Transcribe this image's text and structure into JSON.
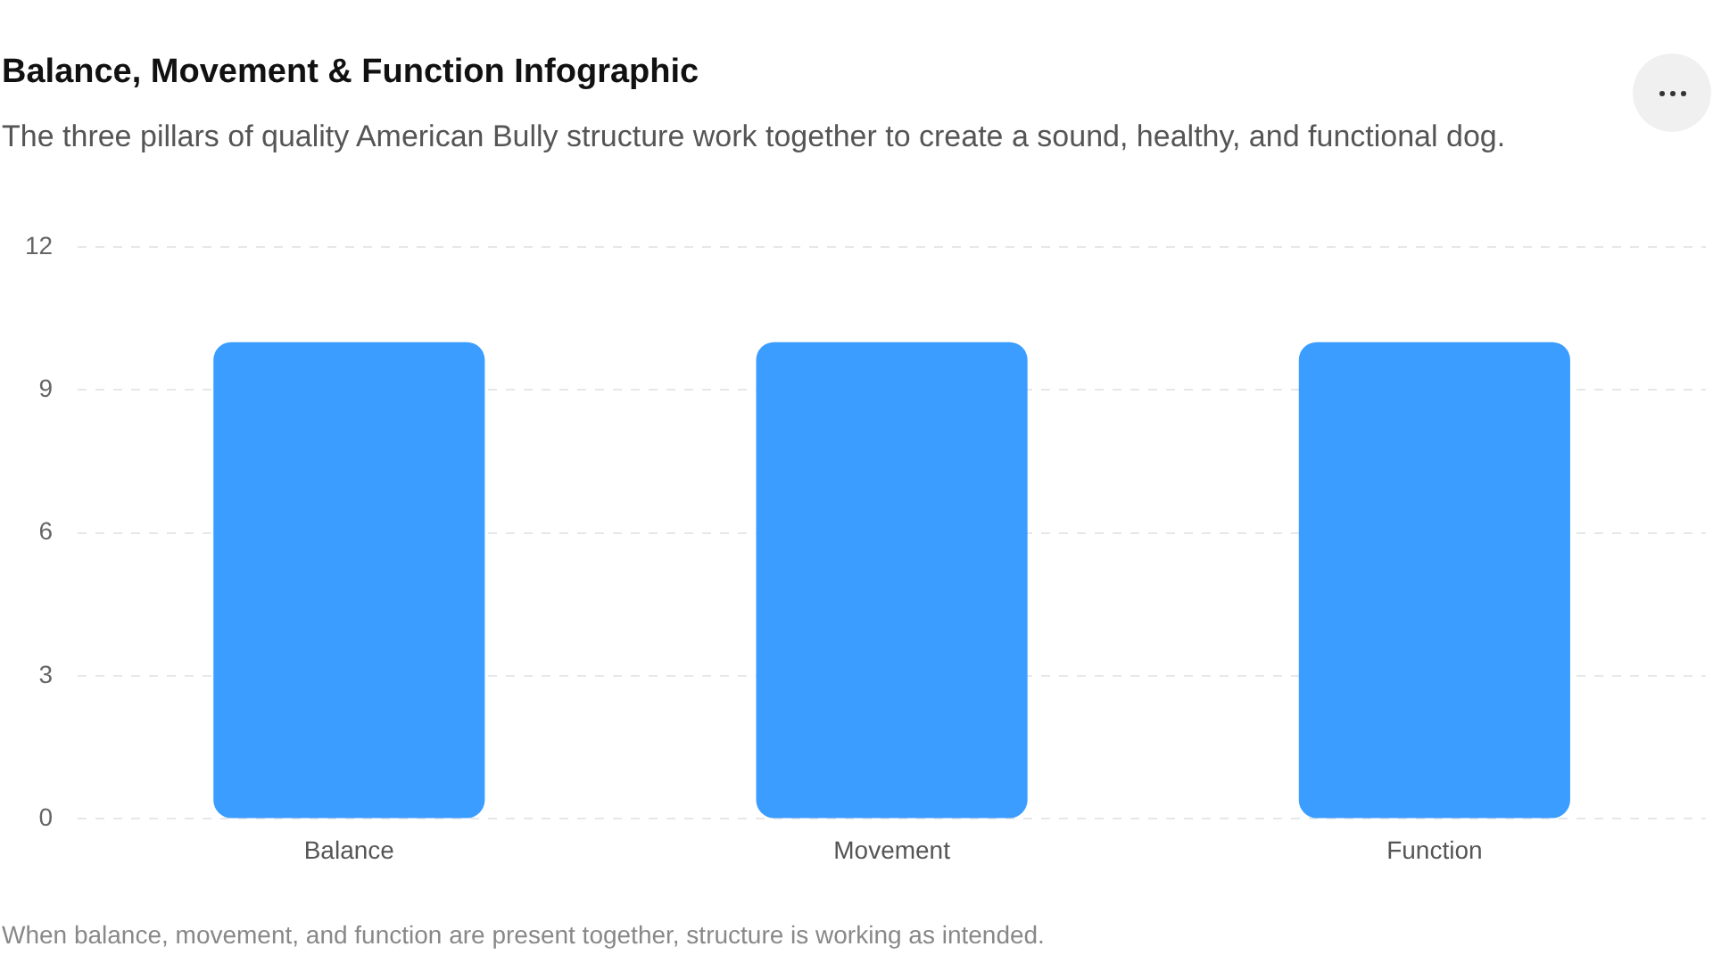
{
  "chart_data": {
    "type": "bar",
    "title": "Balance, Movement & Function Infographic",
    "subtitle": "The three pillars of quality American Bully structure work together to create a sound, healthy, and functional dog.",
    "categories": [
      "Balance",
      "Movement",
      "Function"
    ],
    "values": [
      10,
      10,
      10
    ],
    "color": "#3a9dff",
    "ylim": [
      0,
      12
    ],
    "yticks": [
      0,
      3,
      6,
      9,
      12
    ],
    "grid": "y",
    "annotations": [
      "When balance, movement, and function are present together, structure is working as intended."
    ]
  }
}
